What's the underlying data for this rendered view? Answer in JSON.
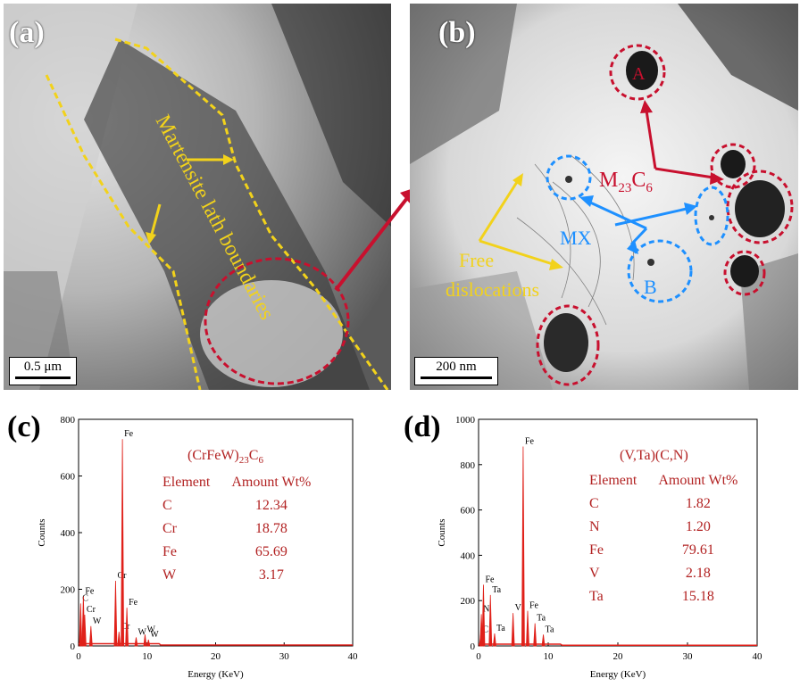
{
  "panels": {
    "a": {
      "label": "(a)",
      "scalebar": "0.5 μm",
      "annotation": "Martensite lath boundaries"
    },
    "b": {
      "label": "(b)",
      "scalebar": "200 nm",
      "annotation_m23c6": "M23C6",
      "annotation_mx": "MX",
      "annotation_disl": "Free dislocations",
      "marker_a": "A",
      "marker_b": "B"
    },
    "c": {
      "label": "(c)"
    },
    "d": {
      "label": "(d)"
    }
  },
  "colors": {
    "red": "#c8102e",
    "yellow": "#f2d21b",
    "blue": "#1e90ff",
    "spectrum": "#e0211a"
  },
  "chart_data": [
    {
      "type": "line",
      "panel": "c",
      "xlabel": "Energy (KeV)",
      "ylabel": "Counts",
      "xlim": [
        0,
        40
      ],
      "ylim": [
        0,
        800
      ],
      "xticks": [
        "0",
        "10",
        "20",
        "30",
        "40"
      ],
      "yticks": [
        "0",
        "200",
        "400",
        "600",
        "800"
      ],
      "peaks": [
        {
          "x": 0.3,
          "y": 150,
          "label": "C"
        },
        {
          "x": 0.7,
          "y": 175,
          "label": "Fe"
        },
        {
          "x": 0.9,
          "y": 110,
          "label": "Cr"
        },
        {
          "x": 1.8,
          "y": 70,
          "label": "W"
        },
        {
          "x": 5.4,
          "y": 230,
          "label": "Cr"
        },
        {
          "x": 5.9,
          "y": 50,
          "label": "Cr"
        },
        {
          "x": 6.4,
          "y": 730,
          "label": "Fe"
        },
        {
          "x": 7.05,
          "y": 135,
          "label": "Fe"
        },
        {
          "x": 8.4,
          "y": 30,
          "label": "W"
        },
        {
          "x": 9.7,
          "y": 40,
          "label": "W"
        },
        {
          "x": 10.2,
          "y": 22,
          "label": "W"
        }
      ],
      "table_title": "(CrFeW)23C6",
      "table_headers": [
        "Element",
        "Amount Wt%"
      ],
      "table_rows": [
        [
          "C",
          "12.34"
        ],
        [
          "Cr",
          "18.78"
        ],
        [
          "Fe",
          "65.69"
        ],
        [
          "W",
          "3.17"
        ]
      ]
    },
    {
      "type": "line",
      "panel": "d",
      "xlabel": "Energy (KeV)",
      "ylabel": "Counts",
      "xlim": [
        0,
        40
      ],
      "ylim": [
        0,
        1000
      ],
      "xticks": [
        "0",
        "10",
        "20",
        "30",
        "40"
      ],
      "yticks": [
        "0",
        "200",
        "400",
        "600",
        "800",
        "1000"
      ],
      "peaks": [
        {
          "x": 0.3,
          "y": 50,
          "label": "C"
        },
        {
          "x": 0.4,
          "y": 140,
          "label": "N"
        },
        {
          "x": 0.7,
          "y": 270,
          "label": "Fe"
        },
        {
          "x": 1.7,
          "y": 225,
          "label": "Ta"
        },
        {
          "x": 2.3,
          "y": 55,
          "label": "Ta"
        },
        {
          "x": 4.95,
          "y": 145,
          "label": "V"
        },
        {
          "x": 6.4,
          "y": 880,
          "label": "Fe"
        },
        {
          "x": 7.05,
          "y": 155,
          "label": "Fe"
        },
        {
          "x": 8.1,
          "y": 100,
          "label": "Ta"
        },
        {
          "x": 9.3,
          "y": 50,
          "label": "Ta"
        }
      ],
      "table_title": "(V,Ta)(C,N)",
      "table_headers": [
        "Element",
        "Amount Wt%"
      ],
      "table_rows": [
        [
          "C",
          "1.82"
        ],
        [
          "N",
          "1.20"
        ],
        [
          "Fe",
          "79.61"
        ],
        [
          "V",
          "2.18"
        ],
        [
          "Ta",
          "15.18"
        ]
      ]
    }
  ]
}
